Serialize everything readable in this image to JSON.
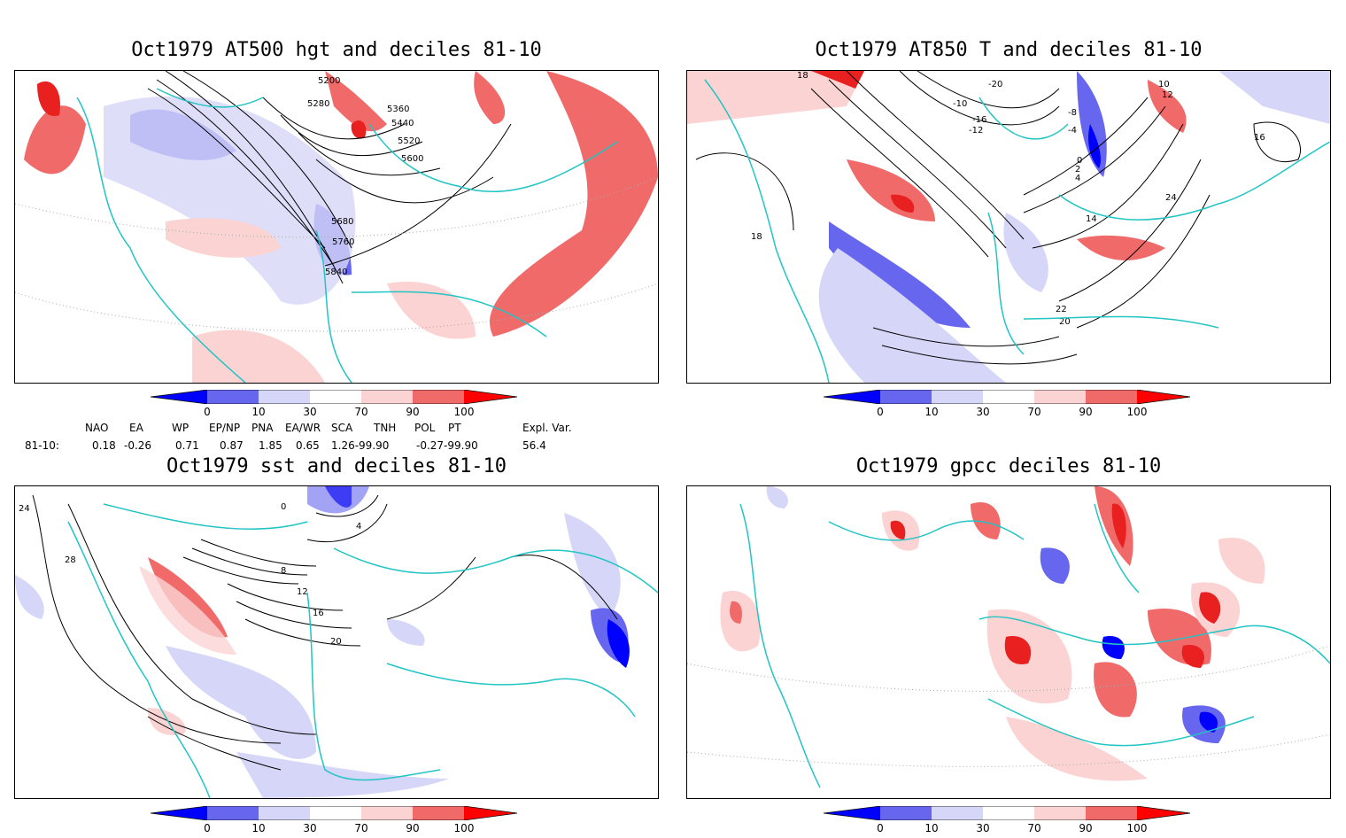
{
  "panels": [
    {
      "title": "Oct1979 AT500 hgt and deciles 81-10",
      "contour_labels": [
        "5200",
        "5280",
        "5360",
        "5440",
        "5520",
        "5600",
        "5680",
        "5760",
        "5840"
      ]
    },
    {
      "title": "Oct1979 AT850 T and deciles 81-10",
      "contour_labels": [
        "18",
        "-10",
        "-20",
        "-16",
        "-12",
        "-8",
        "-4",
        "0",
        "2",
        "4",
        "10",
        "12",
        "14",
        "16",
        "18",
        "20",
        "22",
        "24"
      ]
    },
    {
      "title": "Oct1979 sst and deciles 81-10",
      "contour_labels": [
        "24",
        "28",
        "0",
        "4",
        "8",
        "12",
        "16",
        "20"
      ]
    },
    {
      "title": "Oct1979 gpcc deciles 81-10",
      "contour_labels": []
    }
  ],
  "colorbar": {
    "ticks": [
      "0",
      "10",
      "30",
      "70",
      "90",
      "100"
    ],
    "colors": [
      "#0000ff",
      "#6666ee",
      "#d6d6f8",
      "#ffffff",
      "#fbd3d3",
      "#f06a6a",
      "#ff0000"
    ]
  },
  "indices": {
    "headers": [
      "NAO",
      "EA",
      "WP",
      "EP/NP",
      "PNA",
      "EA/WR",
      "SCA",
      "TNH",
      "POL",
      "PT",
      "Expl. Var."
    ],
    "row_label": "81-10:",
    "values": [
      "0.18",
      "-0.26",
      "0.71",
      "0.87",
      "1.85",
      "0.65",
      "1.26-99.90",
      "-0.27-99.90",
      "56.4"
    ]
  },
  "colors": {
    "coast": "#22c4c4",
    "strong_positive": "#f06a6a",
    "weak_positive": "#fbd3d3",
    "strong_negative": "#6666ee",
    "weak_negative": "#d6d6f8",
    "extreme_positive": "#ff0000",
    "extreme_negative": "#0000ff"
  }
}
